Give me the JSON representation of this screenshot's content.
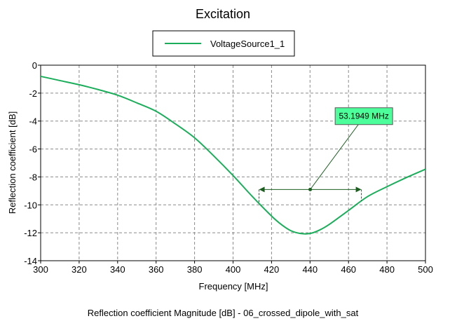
{
  "chart_data": {
    "type": "line",
    "title": "Excitation",
    "xlabel": "Frequency [MHz]",
    "ylabel": "Reflection coefficient [dB]",
    "caption": "Reflection coefficient Magnitude [dB] - 06_crossed_dipole_with_sat",
    "xlim": [
      300,
      500
    ],
    "ylim": [
      -14,
      0
    ],
    "xticks": [
      300,
      320,
      340,
      360,
      380,
      400,
      420,
      440,
      460,
      480,
      500
    ],
    "yticks": [
      0,
      -2,
      -4,
      -6,
      -8,
      -10,
      -12,
      -14
    ],
    "grid": true,
    "legend_position": "top-center",
    "series": [
      {
        "name": "VoltageSource1_1",
        "color": "#1aae5a",
        "x": [
          300,
          310,
          320,
          330,
          340,
          350,
          360,
          370,
          380,
          390,
          400,
          410,
          420,
          425,
          430,
          435,
          440,
          445,
          450,
          460,
          470,
          480,
          490,
          500
        ],
        "y": [
          -0.8,
          -1.1,
          -1.4,
          -1.75,
          -2.15,
          -2.7,
          -3.3,
          -4.2,
          -5.2,
          -6.5,
          -7.9,
          -9.4,
          -10.8,
          -11.4,
          -11.85,
          -12.05,
          -12.05,
          -11.8,
          -11.4,
          -10.4,
          -9.4,
          -8.7,
          -8.05,
          -7.45
        ]
      }
    ],
    "annotation": {
      "label": "53.1949 MHz",
      "x_start": 413.5,
      "x_end": 466.7,
      "x_center": 440.1,
      "y_level": -8.9,
      "label_anchor_x": 468,
      "label_anchor_y": -3.65,
      "label_bg": "#4dff9a",
      "arrow_color": "#1b5e20"
    }
  }
}
